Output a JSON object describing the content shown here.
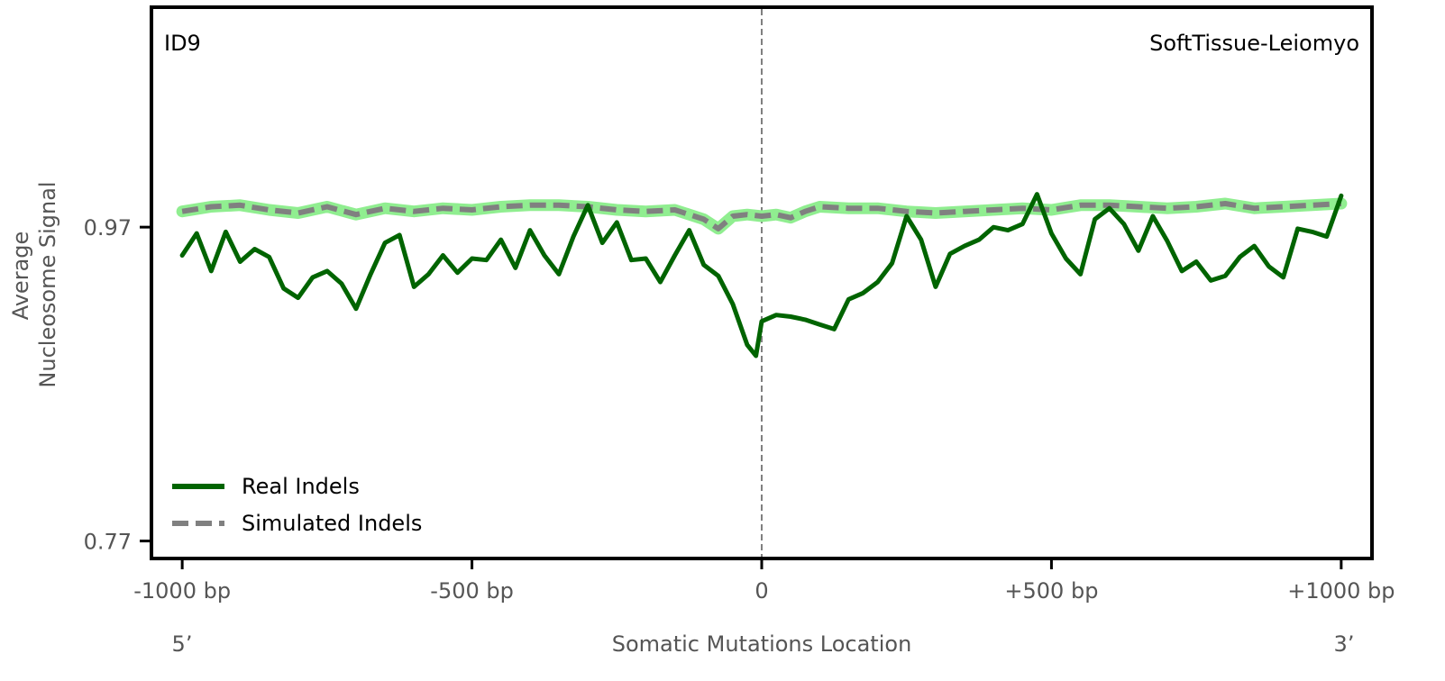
{
  "chart_data": {
    "type": "line",
    "panel_label": "ID9",
    "tissue_label": "SoftTissue-Leiomyo",
    "xlabel": "Somatic Mutations Location",
    "ylabel_lines": [
      "Average",
      "Nucleosome Signal"
    ],
    "x_ticks": [
      {
        "value": -1000,
        "label": "-1000 bp"
      },
      {
        "value": -500,
        "label": "-500 bp"
      },
      {
        "value": 0,
        "label": "0"
      },
      {
        "value": 500,
        "label": "+500 bp"
      },
      {
        "value": 1000,
        "label": "+1000 bp"
      }
    ],
    "y_ticks": [
      {
        "value": 0.97,
        "label": "0.97"
      },
      {
        "value": 0.77,
        "label": "0.77"
      }
    ],
    "end_labels": {
      "left": "5’",
      "right": "3’"
    },
    "xlim": [
      -1050,
      1050
    ],
    "ylim": [
      0.76,
      1.109
    ],
    "center_line_x": 0,
    "legend": {
      "position": "lower-left"
    },
    "series": [
      {
        "name": "Real Indels",
        "color": "#006400",
        "style": "solid",
        "x": [
          -1000,
          -975,
          -950,
          -925,
          -900,
          -875,
          -850,
          -825,
          -800,
          -775,
          -750,
          -725,
          -700,
          -675,
          -650,
          -625,
          -600,
          -575,
          -550,
          -525,
          -500,
          -475,
          -450,
          -425,
          -400,
          -375,
          -350,
          -325,
          -300,
          -275,
          -250,
          -225,
          -200,
          -175,
          -150,
          -125,
          -100,
          -75,
          -50,
          -25,
          -10,
          0,
          25,
          50,
          75,
          100,
          125,
          150,
          175,
          200,
          225,
          250,
          275,
          300,
          325,
          350,
          375,
          400,
          425,
          450,
          475,
          500,
          525,
          550,
          575,
          600,
          625,
          650,
          675,
          700,
          725,
          750,
          775,
          800,
          825,
          850,
          875,
          900,
          925,
          950,
          975,
          1000
        ],
        "y": [
          0.952,
          0.966,
          0.942,
          0.967,
          0.948,
          0.956,
          0.951,
          0.931,
          0.925,
          0.938,
          0.942,
          0.934,
          0.918,
          0.94,
          0.96,
          0.965,
          0.932,
          0.94,
          0.952,
          0.941,
          0.95,
          0.949,
          0.962,
          0.944,
          0.968,
          0.952,
          0.94,
          0.964,
          0.984,
          0.96,
          0.973,
          0.949,
          0.95,
          0.935,
          0.952,
          0.968,
          0.946,
          0.939,
          0.921,
          0.895,
          0.888,
          0.91,
          0.914,
          0.913,
          0.911,
          0.908,
          0.905,
          0.924,
          0.928,
          0.935,
          0.947,
          0.977,
          0.962,
          0.932,
          0.953,
          0.958,
          0.962,
          0.97,
          0.968,
          0.972,
          0.991,
          0.966,
          0.95,
          0.94,
          0.975,
          0.982,
          0.972,
          0.955,
          0.977,
          0.961,
          0.942,
          0.948,
          0.936,
          0.939,
          0.951,
          0.958,
          0.945,
          0.938,
          0.969,
          0.967,
          0.964,
          0.99
        ]
      },
      {
        "name": "Simulated Indels",
        "color": "#808080",
        "band_color": "#90EE90",
        "style": "dashed",
        "x": [
          -1000,
          -950,
          -900,
          -850,
          -800,
          -750,
          -700,
          -650,
          -600,
          -550,
          -500,
          -450,
          -400,
          -350,
          -300,
          -250,
          -200,
          -150,
          -100,
          -75,
          -50,
          -25,
          0,
          25,
          50,
          75,
          100,
          150,
          200,
          250,
          300,
          350,
          400,
          450,
          500,
          550,
          600,
          650,
          700,
          750,
          800,
          850,
          900,
          950,
          1000
        ],
        "y": [
          0.98,
          0.983,
          0.984,
          0.981,
          0.979,
          0.983,
          0.978,
          0.982,
          0.98,
          0.982,
          0.981,
          0.983,
          0.984,
          0.984,
          0.983,
          0.981,
          0.98,
          0.981,
          0.975,
          0.969,
          0.977,
          0.978,
          0.977,
          0.978,
          0.976,
          0.98,
          0.983,
          0.982,
          0.982,
          0.98,
          0.979,
          0.98,
          0.981,
          0.982,
          0.981,
          0.984,
          0.984,
          0.983,
          0.982,
          0.983,
          0.985,
          0.982,
          0.983,
          0.984,
          0.985
        ]
      }
    ]
  }
}
